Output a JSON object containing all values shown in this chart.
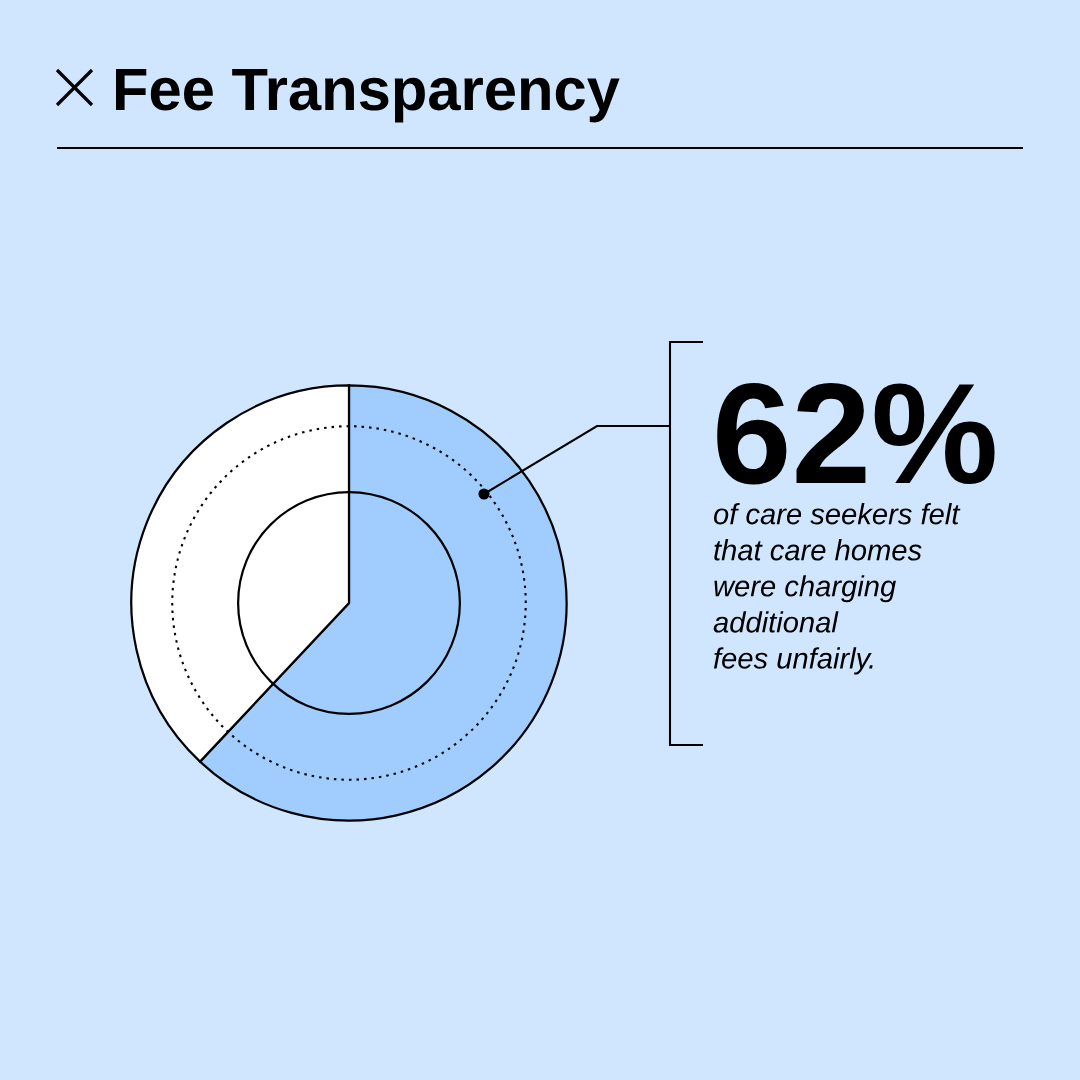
{
  "chart_data": {
    "type": "pie",
    "title": "Fee Transparency",
    "categories": [
      null,
      null
    ],
    "values": [
      62,
      38
    ],
    "colors": [
      "#a0cdfe",
      "#ffffff"
    ],
    "value_labels": [
      "62%",
      null
    ],
    "annotations": [
      "of care seekers felt\nthat care homes\nwere charging\nadditional\nfees unfairly."
    ]
  }
}
